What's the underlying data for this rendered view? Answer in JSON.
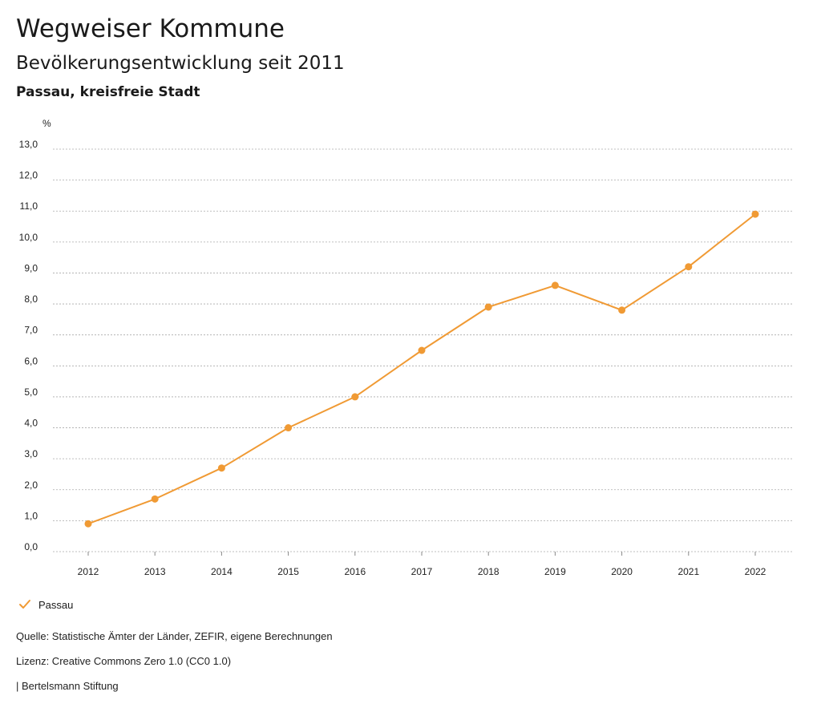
{
  "header": {
    "title": "Wegweiser Kommune",
    "subtitle": "Bevölkerungsentwicklung seit 2011",
    "region": "Passau, kreisfreie Stadt"
  },
  "legend": {
    "label": "Passau"
  },
  "footer": {
    "source": "Quelle: Statistische Ämter der Länder, ZEFIR, eigene Berechnungen",
    "license": "Lizenz: Creative Commons Zero 1.0 (CC0 1.0)",
    "brand": "| Bertelsmann Stiftung"
  },
  "colors": {
    "series": "#F09A34",
    "grid": "#aaaaaa"
  },
  "chart_data": {
    "type": "line",
    "title": "Bevölkerungsentwicklung seit 2011",
    "ylabel": "%",
    "xlabel": "",
    "ylim": [
      0,
      13
    ],
    "yticks": [
      "0,0",
      "1,0",
      "2,0",
      "3,0",
      "4,0",
      "5,0",
      "6,0",
      "7,0",
      "8,0",
      "9,0",
      "10,0",
      "11,0",
      "12,0",
      "13,0"
    ],
    "categories": [
      "2012",
      "2013",
      "2014",
      "2015",
      "2016",
      "2017",
      "2018",
      "2019",
      "2020",
      "2021",
      "2022"
    ],
    "series": [
      {
        "name": "Passau",
        "values": [
          0.9,
          1.7,
          2.7,
          4.0,
          5.0,
          6.5,
          7.9,
          8.6,
          7.8,
          9.2,
          10.9
        ]
      }
    ],
    "grid": true,
    "legend_position": "bottom-left"
  }
}
